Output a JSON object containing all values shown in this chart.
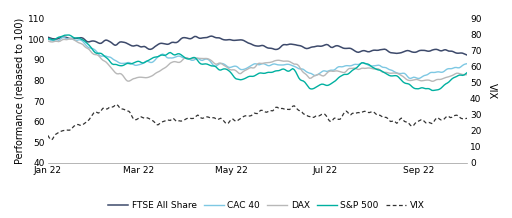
{
  "ylabel_left": "Performance (rebased to 100)",
  "ylabel_right": "VIX",
  "ylim_left": [
    40,
    110
  ],
  "ylim_right": [
    0,
    90
  ],
  "yticks_left": [
    40,
    50,
    60,
    70,
    80,
    90,
    100,
    110
  ],
  "yticks_right": [
    0,
    10,
    20,
    30,
    40,
    50,
    60,
    70,
    80,
    90
  ],
  "xtick_labels": [
    "Jan 22",
    "Mar 22",
    "May 22",
    "Jul 22",
    "Sep 22"
  ],
  "xtick_positions": [
    0,
    59,
    120,
    181,
    242
  ],
  "n_points": 275,
  "ftse_color": "#3d4a6b",
  "cac_color": "#7ec8e3",
  "dax_color": "#b8b8b8",
  "sp500_color": "#00b0a0",
  "vix_color": "#333333",
  "ftse_lw": 1.1,
  "cac_lw": 1.0,
  "dax_lw": 1.0,
  "sp500_lw": 1.0,
  "vix_lw": 0.9,
  "legend_fontsize": 6.5,
  "axis_fontsize": 7,
  "tick_fontsize": 6.5
}
